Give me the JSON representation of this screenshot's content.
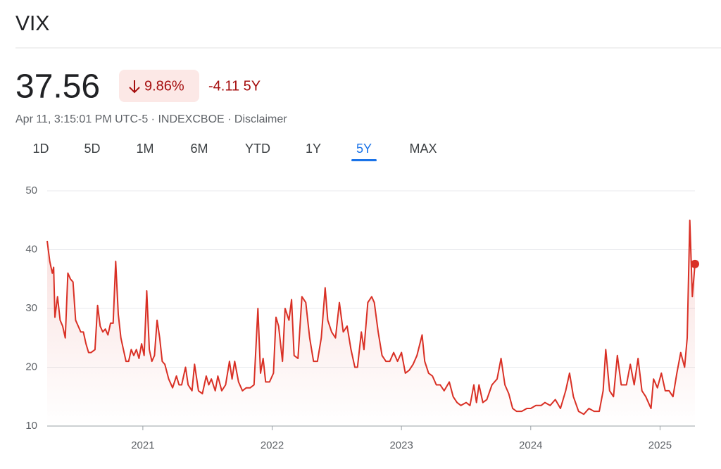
{
  "header": {
    "title": "VIX",
    "price": "37.56",
    "change_percent": "9.86%",
    "change": "-4.11 5Y",
    "meta": "Apr 11, 3:15:01 PM UTC-5 · INDEXCBOE · Disclaimer"
  },
  "tabs": {
    "items": [
      "1D",
      "5D",
      "1M",
      "6M",
      "YTD",
      "1Y",
      "5Y",
      "MAX"
    ],
    "selected": 6
  },
  "chart_data": {
    "type": "line",
    "color": "#d93025",
    "grid": true,
    "xlim": [
      2020.26,
      2025.27
    ],
    "xticks": [
      2021,
      2022,
      2023,
      2024,
      2025
    ],
    "ylim": [
      10,
      50
    ],
    "yticks": [
      10,
      20,
      30,
      40,
      50
    ],
    "x": [
      2020.26,
      2020.28,
      2020.3,
      2020.31,
      2020.32,
      2020.34,
      2020.36,
      2020.38,
      2020.4,
      2020.42,
      2020.44,
      2020.46,
      2020.48,
      2020.5,
      2020.52,
      2020.54,
      2020.56,
      2020.58,
      2020.6,
      2020.63,
      2020.65,
      2020.67,
      2020.69,
      2020.71,
      2020.73,
      2020.75,
      2020.77,
      2020.79,
      2020.81,
      2020.83,
      2020.85,
      2020.87,
      2020.89,
      2020.91,
      2020.93,
      2020.95,
      2020.97,
      2020.99,
      2021.01,
      2021.03,
      2021.05,
      2021.07,
      2021.09,
      2021.11,
      2021.13,
      2021.15,
      2021.17,
      2021.2,
      2021.23,
      2021.26,
      2021.28,
      2021.3,
      2021.33,
      2021.35,
      2021.38,
      2021.4,
      2021.43,
      2021.46,
      2021.49,
      2021.51,
      2021.53,
      2021.56,
      2021.58,
      2021.61,
      2021.64,
      2021.67,
      2021.69,
      2021.71,
      2021.74,
      2021.77,
      2021.8,
      2021.83,
      2021.86,
      2021.89,
      2021.91,
      2021.93,
      2021.95,
      2021.98,
      2022.01,
      2022.03,
      2022.05,
      2022.08,
      2022.1,
      2022.13,
      2022.15,
      2022.17,
      2022.2,
      2022.23,
      2022.26,
      2022.29,
      2022.32,
      2022.35,
      2022.38,
      2022.41,
      2022.43,
      2022.46,
      2022.49,
      2022.52,
      2022.55,
      2022.58,
      2022.61,
      2022.64,
      2022.66,
      2022.69,
      2022.71,
      2022.74,
      2022.77,
      2022.79,
      2022.82,
      2022.85,
      2022.88,
      2022.91,
      2022.94,
      2022.97,
      2023.0,
      2023.03,
      2023.06,
      2023.09,
      2023.12,
      2023.16,
      2023.18,
      2023.21,
      2023.24,
      2023.27,
      2023.3,
      2023.33,
      2023.37,
      2023.4,
      2023.43,
      2023.46,
      2023.5,
      2023.53,
      2023.56,
      2023.58,
      2023.6,
      2023.63,
      2023.66,
      2023.7,
      2023.74,
      2023.77,
      2023.8,
      2023.83,
      2023.86,
      2023.89,
      2023.93,
      2023.97,
      2024.0,
      2024.04,
      2024.08,
      2024.11,
      2024.15,
      2024.19,
      2024.23,
      2024.27,
      2024.3,
      2024.33,
      2024.37,
      2024.41,
      2024.45,
      2024.49,
      2024.53,
      2024.56,
      2024.58,
      2024.61,
      2024.64,
      2024.67,
      2024.7,
      2024.74,
      2024.77,
      2024.8,
      2024.83,
      2024.86,
      2024.89,
      2024.93,
      2024.95,
      2024.98,
      2025.01,
      2025.04,
      2025.07,
      2025.1,
      2025.13,
      2025.16,
      2025.19,
      2025.21,
      2025.23,
      2025.25,
      2025.27
    ],
    "values": [
      41.5,
      38,
      36,
      37,
      28.5,
      32,
      28,
      27,
      25,
      36,
      35,
      34.5,
      28,
      27,
      26,
      26,
      24,
      22.5,
      22.5,
      23,
      30.5,
      27,
      26,
      26.5,
      25.5,
      27.5,
      27.5,
      38,
      29,
      25,
      23,
      21,
      21,
      23,
      22,
      23,
      21.5,
      24,
      22,
      33,
      23,
      21,
      22,
      28,
      25,
      21,
      20.5,
      18,
      16.5,
      18.5,
      17,
      17,
      20,
      17,
      16,
      20.5,
      16,
      15.5,
      18.5,
      17,
      18,
      16,
      18.5,
      16,
      17,
      21,
      18,
      21,
      17.5,
      16,
      16.5,
      16.5,
      17,
      30,
      19,
      21.5,
      17.5,
      17.5,
      19,
      28.5,
      27,
      21,
      30,
      28,
      31.5,
      22,
      21.5,
      32,
      31,
      25,
      21,
      21,
      25,
      33.5,
      28,
      26,
      25,
      31,
      26,
      27,
      23,
      20,
      20,
      26,
      23,
      31,
      32,
      31,
      26,
      22,
      21,
      21,
      22.5,
      21,
      22.5,
      19,
      19.5,
      20.5,
      22,
      25.5,
      21,
      19,
      18.5,
      17,
      17,
      16,
      17.5,
      15,
      14,
      13.5,
      14,
      13.5,
      17,
      14,
      17,
      14,
      14.5,
      17,
      18,
      21.5,
      17,
      15.5,
      13,
      12.5,
      12.5,
      13,
      13,
      13.5,
      13.5,
      14,
      13.5,
      14.5,
      13,
      16,
      19,
      15,
      12.5,
      12,
      13,
      12.5,
      12.5,
      16,
      23,
      16,
      15,
      22,
      17,
      17,
      20.5,
      17,
      21.5,
      16,
      15,
      13,
      18,
      16.5,
      19,
      16,
      16,
      15,
      19,
      22.5,
      20,
      25,
      45,
      32,
      37.56
    ]
  }
}
